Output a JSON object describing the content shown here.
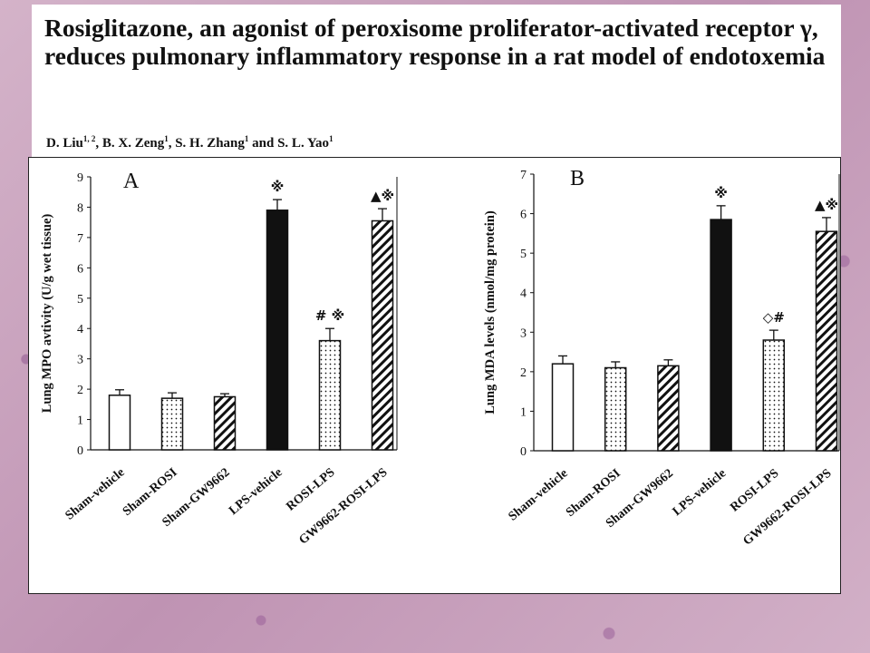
{
  "header": {
    "title": "Rosiglitazone, an agonist of peroxisome proliferator-activated receptor γ, reduces pulmonary inflammatory response in a rat model of endotoxemia",
    "authors": [
      {
        "name": "D. Liu",
        "sup": "1, 2"
      },
      {
        "name": "B. X. Zeng",
        "sup": "1"
      },
      {
        "name": "S. H. Zhang",
        "sup": "1"
      },
      {
        "name": "S. L. Yao",
        "sup": "1"
      }
    ],
    "authors_sep": [
      ", ",
      ", ",
      " and ",
      ""
    ]
  },
  "chart_data": [
    {
      "type": "bar",
      "panel_label": "A",
      "ylabel": "Lung MPO avtivity (U/g wet tissue)",
      "xlabel": "",
      "ylim": [
        0,
        9
      ],
      "yticks": [
        0,
        1,
        2,
        3,
        4,
        5,
        6,
        7,
        8,
        9
      ],
      "categories": [
        "Sham-vehicle",
        "Sham-ROSI",
        "Sham-GW9662",
        "LPS-vehicle",
        "ROSI-LPS",
        "GW9662-ROSI-LPS"
      ],
      "values": [
        1.8,
        1.7,
        1.75,
        7.9,
        3.6,
        7.55
      ],
      "errors": [
        0.18,
        0.18,
        0.1,
        0.35,
        0.4,
        0.4
      ],
      "fills": [
        "white",
        "dots",
        "hatch",
        "black",
        "dots",
        "hatch"
      ],
      "annotations": [
        "",
        "",
        "",
        "※",
        "# ※",
        "▲※"
      ]
    },
    {
      "type": "bar",
      "panel_label": "B",
      "ylabel": "Lung MDA levels (nmol/mg protein)",
      "xlabel": "",
      "ylim": [
        0,
        7
      ],
      "yticks": [
        0,
        1,
        2,
        3,
        4,
        5,
        6,
        7
      ],
      "categories": [
        "Sham-vehicle",
        "Sham-ROSI",
        "Sham-GW9662",
        "LPS-vehicle",
        "ROSI-LPS",
        "GW9662-ROSI-LPS"
      ],
      "values": [
        2.2,
        2.1,
        2.15,
        5.85,
        2.8,
        5.55
      ],
      "errors": [
        0.2,
        0.15,
        0.15,
        0.35,
        0.25,
        0.35
      ],
      "fills": [
        "white",
        "dots",
        "hatch",
        "black",
        "dots",
        "hatch"
      ],
      "annotations": [
        "",
        "",
        "",
        "※",
        "◇#",
        "▲※"
      ]
    }
  ]
}
